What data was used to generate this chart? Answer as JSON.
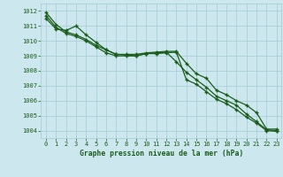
{
  "title": "Graphe pression niveau de la mer (hPa)",
  "background_color": "#cce8ee",
  "grid_color": "#aad0d8",
  "line_color": "#1a5c1a",
  "tick_color": "#1a5c1a",
  "xlim": [
    -0.5,
    23.5
  ],
  "ylim": [
    1003.5,
    1012.5
  ],
  "yticks": [
    1004,
    1005,
    1006,
    1007,
    1008,
    1009,
    1010,
    1011,
    1012
  ],
  "xticks": [
    0,
    1,
    2,
    3,
    4,
    5,
    6,
    7,
    8,
    9,
    10,
    11,
    12,
    13,
    14,
    15,
    16,
    17,
    18,
    19,
    20,
    21,
    22,
    23
  ],
  "series1": [
    1011.5,
    1010.8,
    1010.7,
    1011.0,
    1010.4,
    1009.9,
    1009.4,
    1009.1,
    1009.1,
    1009.1,
    1009.2,
    1009.25,
    1009.3,
    1009.3,
    1008.5,
    1007.8,
    1007.5,
    1006.7,
    1006.4,
    1006.0,
    1005.7,
    1005.2,
    1004.1,
    1004.1
  ],
  "series2": [
    1011.9,
    1011.1,
    1010.6,
    1010.4,
    1010.1,
    1009.7,
    1009.4,
    1009.1,
    1009.05,
    1009.0,
    1009.15,
    1009.2,
    1009.25,
    1008.6,
    1007.9,
    1007.4,
    1006.9,
    1006.3,
    1006.0,
    1005.7,
    1005.1,
    1004.6,
    1004.05,
    1004.0
  ],
  "series3": [
    1011.7,
    1010.9,
    1010.5,
    1010.3,
    1010.0,
    1009.6,
    1009.2,
    1009.0,
    1009.0,
    1009.0,
    1009.15,
    1009.15,
    1009.2,
    1009.25,
    1007.4,
    1007.1,
    1006.6,
    1006.1,
    1005.8,
    1005.4,
    1004.9,
    1004.5,
    1004.0,
    1003.95
  ]
}
